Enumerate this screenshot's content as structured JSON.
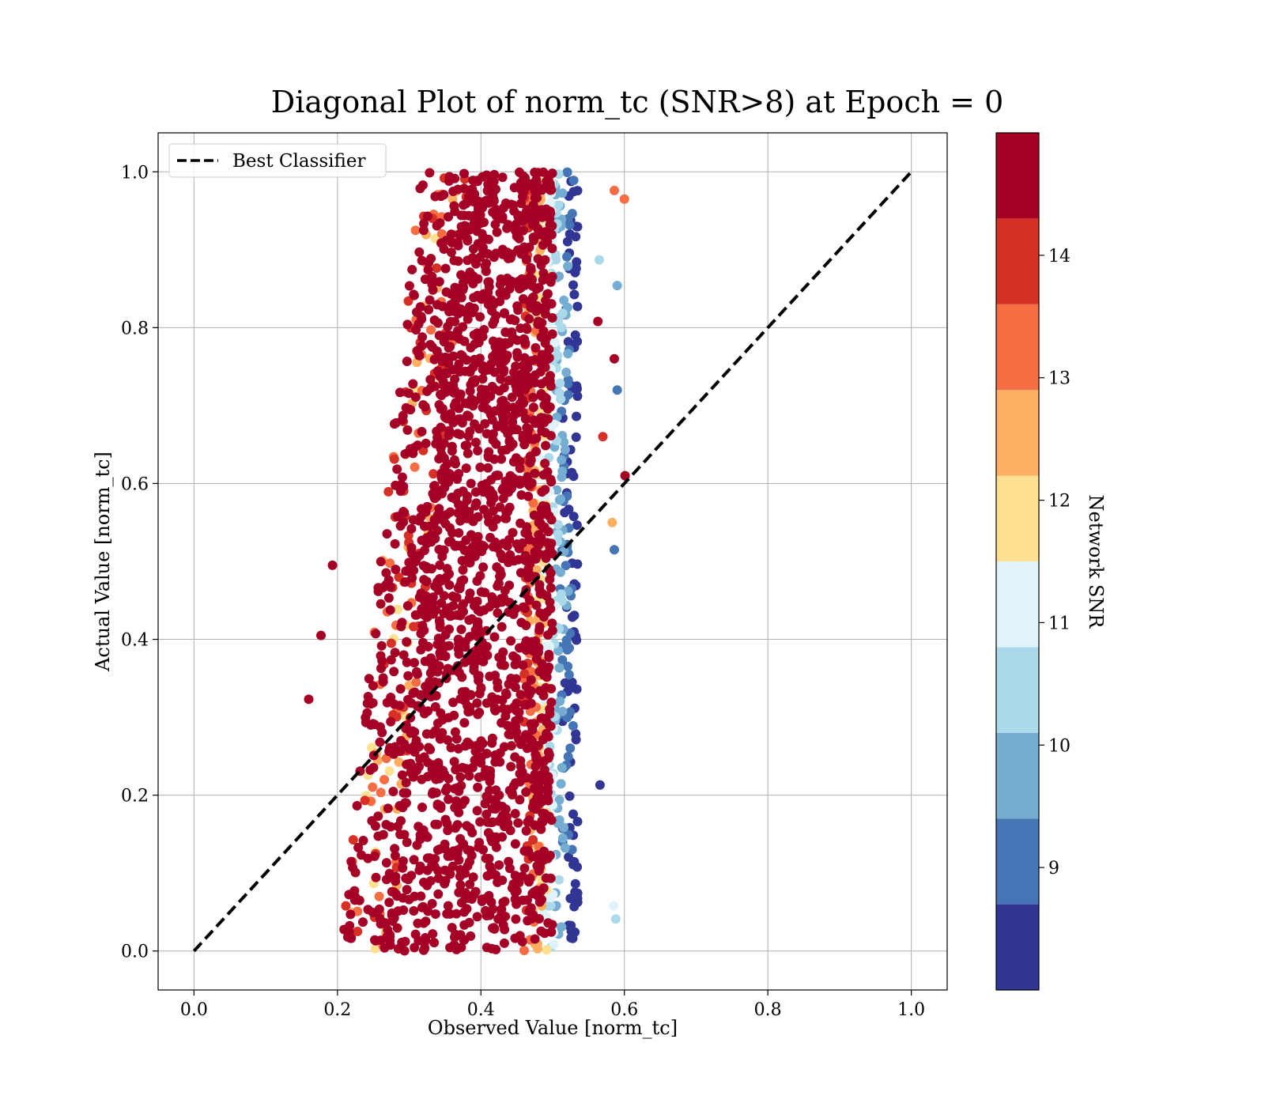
{
  "chart_data": {
    "type": "scatter",
    "title": "Diagonal Plot of norm_tc (SNR>8) at Epoch = 0",
    "xlabel": "Observed Value [norm_tc]",
    "ylabel": "Actual Value [norm_tc]",
    "xlim": [
      -0.05,
      1.05
    ],
    "ylim": [
      -0.05,
      1.05
    ],
    "x_ticks": [
      0.0,
      0.2,
      0.4,
      0.6,
      0.8,
      1.0
    ],
    "y_ticks": [
      0.0,
      0.2,
      0.4,
      0.6,
      0.8,
      1.0
    ],
    "x_tick_labels": [
      "0.0",
      "0.2",
      "0.4",
      "0.6",
      "0.8",
      "1.0"
    ],
    "y_tick_labels": [
      "0.0",
      "0.2",
      "0.4",
      "0.6",
      "0.8",
      "1.0"
    ],
    "grid": true,
    "legend": {
      "position": "top-left",
      "entries": [
        "Best Classifier"
      ]
    },
    "reference_line": {
      "name": "Best Classifier",
      "x": [
        0.0,
        1.0
      ],
      "y": [
        0.0,
        1.0
      ],
      "style": "dashed",
      "color": "#000000"
    },
    "scatter_description": "Dense cloud of points spanning actual value 0.0 to 1.0, observed values concentrated between about 0.27 and 0.53; core is high SNR (dark red), low-SNR points (blue) lie at the right edge",
    "outliers": [
      {
        "x": 0.16,
        "y": 0.323,
        "snr": 14.6
      },
      {
        "x": 0.177,
        "y": 0.405,
        "snr": 14.6
      },
      {
        "x": 0.193,
        "y": 0.495,
        "snr": 14.6
      },
      {
        "x": 0.586,
        "y": 0.976,
        "snr": 13.2
      },
      {
        "x": 0.6,
        "y": 0.965,
        "snr": 13.2
      },
      {
        "x": 0.565,
        "y": 0.887,
        "snr": 10.4
      },
      {
        "x": 0.59,
        "y": 0.854,
        "snr": 9.9
      },
      {
        "x": 0.563,
        "y": 0.808,
        "snr": 14.6
      },
      {
        "x": 0.586,
        "y": 0.76,
        "snr": 14.6
      },
      {
        "x": 0.59,
        "y": 0.72,
        "snr": 9.3
      },
      {
        "x": 0.57,
        "y": 0.66,
        "snr": 13.9
      },
      {
        "x": 0.601,
        "y": 0.61,
        "snr": 14.6
      },
      {
        "x": 0.586,
        "y": 0.515,
        "snr": 9.3
      },
      {
        "x": 0.583,
        "y": 0.55,
        "snr": 12.6
      },
      {
        "x": 0.566,
        "y": 0.213,
        "snr": 8.4
      },
      {
        "x": 0.585,
        "y": 0.058,
        "snr": 11.3
      },
      {
        "x": 0.588,
        "y": 0.041,
        "snr": 10.4
      }
    ],
    "colorbar": {
      "label": "Network SNR",
      "range": [
        8.0,
        15.0
      ],
      "ticks": [
        9,
        10,
        11,
        12,
        13,
        14
      ],
      "tick_labels": [
        "9",
        "10",
        "11",
        "12",
        "13",
        "14"
      ],
      "colors": [
        "#313695",
        "#4575b4",
        "#74add1",
        "#abd9e9",
        "#e0f3f8",
        "#fee090",
        "#fdae61",
        "#f46d43",
        "#d73027",
        "#a50026"
      ]
    }
  }
}
